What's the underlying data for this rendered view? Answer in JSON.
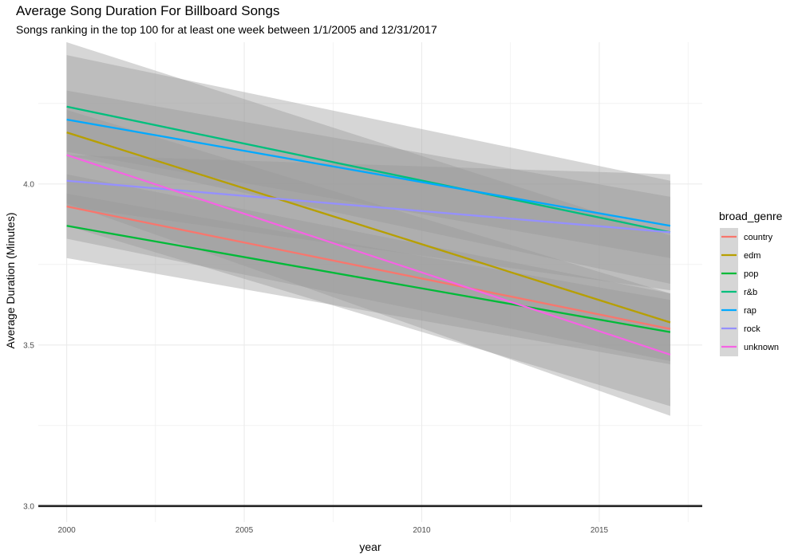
{
  "chart_data": {
    "type": "line",
    "title": "Average Song Duration For Billboard Songs",
    "subtitle": "Songs ranking in the top 100 for at least one week between 1/1/2005 and 12/31/2017",
    "xlabel": "year",
    "ylabel": "Average Duration (Minutes)",
    "xlim": [
      1999.2,
      2017.9
    ],
    "ylim": [
      2.95,
      4.44
    ],
    "x_ticks": [
      2000,
      2005,
      2010,
      2015
    ],
    "x_tick_labels": [
      "2000",
      "2005",
      "2010",
      "2015"
    ],
    "y_ticks": [
      3.0,
      3.5,
      4.0
    ],
    "y_tick_labels": [
      "3.0",
      "3.5",
      "4.0"
    ],
    "grid": true,
    "hline": 3.0,
    "legend_title": "broad_genre",
    "legend_position": "right",
    "series": [
      {
        "name": "country",
        "color": "#F8766D",
        "x": [
          2000,
          2017
        ],
        "y": [
          3.93,
          3.55
        ],
        "lower": [
          3.83,
          3.45
        ],
        "upper": [
          4.03,
          3.66
        ]
      },
      {
        "name": "edm",
        "color": "#B79F00",
        "x": [
          2000,
          2017
        ],
        "y": [
          4.16,
          3.57
        ],
        "lower": [
          3.87,
          3.31
        ],
        "upper": [
          4.44,
          3.84
        ]
      },
      {
        "name": "pop",
        "color": "#00BA38",
        "x": [
          2000,
          2017
        ],
        "y": [
          3.87,
          3.54
        ],
        "lower": [
          3.77,
          3.44
        ],
        "upper": [
          3.97,
          3.64
        ]
      },
      {
        "name": "r&b",
        "color": "#00BF7D",
        "x": [
          2000,
          2017
        ],
        "y": [
          4.24,
          3.85
        ],
        "lower": [
          4.09,
          3.69
        ],
        "upper": [
          4.4,
          4.01
        ]
      },
      {
        "name": "rap",
        "color": "#00A9FF",
        "x": [
          2000,
          2017
        ],
        "y": [
          4.2,
          3.87
        ],
        "lower": [
          4.1,
          3.77
        ],
        "upper": [
          4.29,
          3.96
        ]
      },
      {
        "name": "rock",
        "color": "#9590FF",
        "x": [
          2000,
          2017
        ],
        "y": [
          4.01,
          3.85
        ],
        "lower": [
          3.93,
          3.67
        ],
        "upper": [
          4.09,
          4.03
        ]
      },
      {
        "name": "unknown",
        "color": "#F564E3",
        "x": [
          2000,
          2017
        ],
        "y": [
          4.09,
          3.47
        ],
        "lower": [
          3.94,
          3.28
        ],
        "upper": [
          4.23,
          3.66
        ]
      }
    ]
  }
}
